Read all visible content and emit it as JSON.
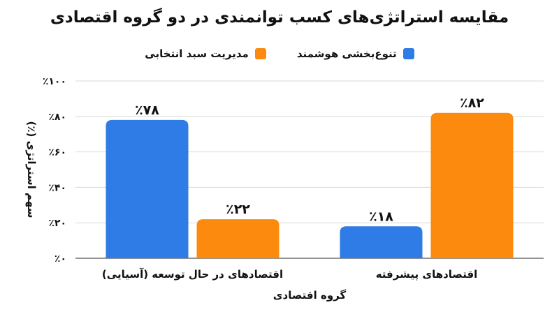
{
  "chart_data": {
    "type": "bar",
    "title": "مقایسه استراتژی‌های کسب توانمندی در دو گروه اقتصادی",
    "xlabel": "گروه اقتصادی",
    "ylabel": "سهم استراتژی (٪)",
    "categories": [
      "اقتصادهای در حال توسعه (آسیایی)",
      "اقتصادهای پیشرفته"
    ],
    "series": [
      {
        "name": "تنوع‌بخشی هوشمند",
        "color": "#2F7CE6",
        "values": [
          78,
          18
        ],
        "labels": [
          "٪۷۸",
          "٪۱۸"
        ]
      },
      {
        "name": "مدیریت سبد انتخابی",
        "color": "#FB8A0E",
        "values": [
          22,
          82
        ],
        "labels": [
          "٪۲۲",
          "٪۸۲"
        ]
      }
    ],
    "ylim": [
      0,
      100
    ],
    "yticks": [
      0,
      20,
      40,
      60,
      80,
      100
    ],
    "ytick_labels": [
      "٪۰",
      "٪۲۰",
      "٪۴۰",
      "٪۶۰",
      "٪۸۰",
      "٪۱۰۰"
    ],
    "grid": true,
    "legend_position": "top-center"
  }
}
